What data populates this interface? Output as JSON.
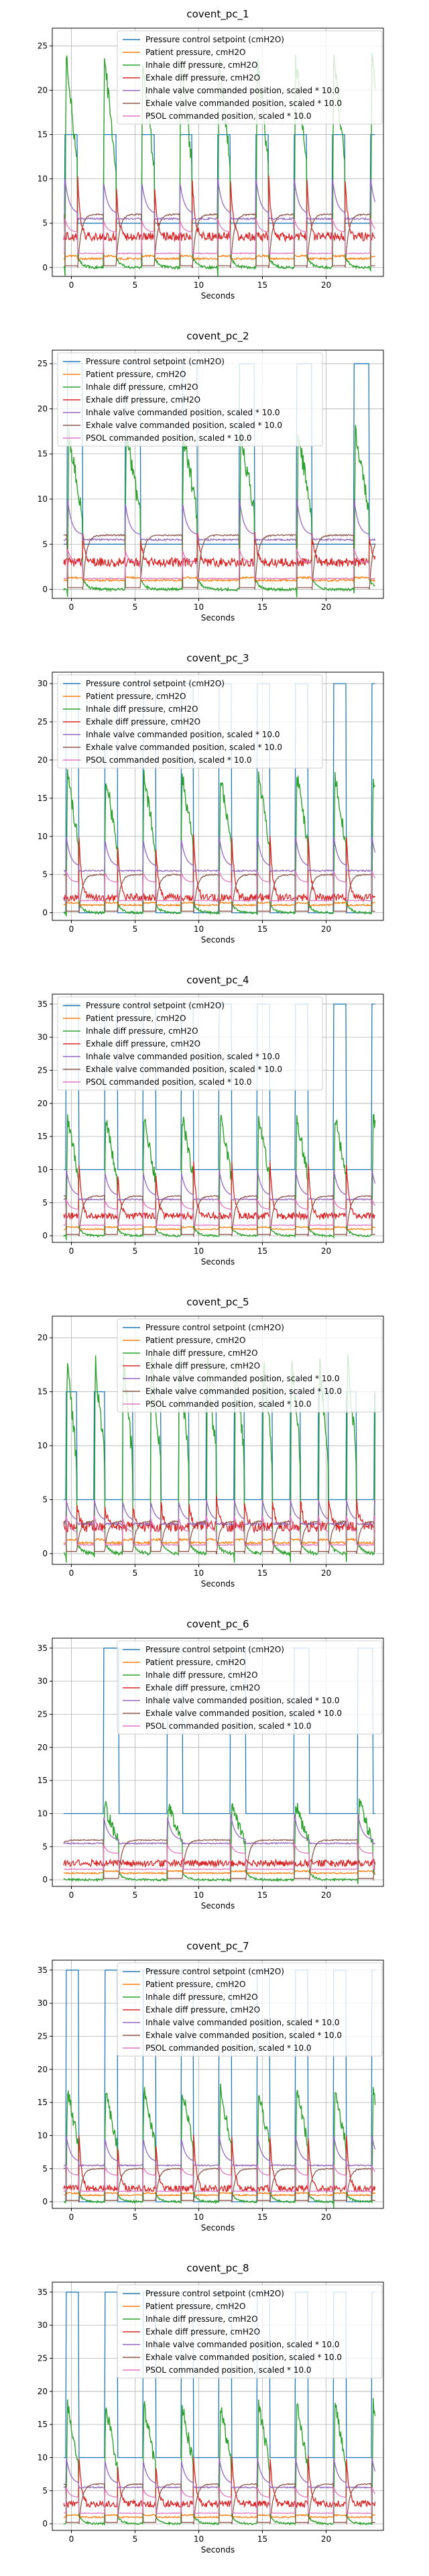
{
  "chart_data": [
    {
      "type": "line",
      "title": "covent_pc_1",
      "xlabel": "Seconds",
      "ylabel": "",
      "xlim": [
        -1.5,
        24.5
      ],
      "ylim": [
        -1,
        27
      ],
      "xticks": [
        "0",
        "5",
        "10",
        "15",
        "20"
      ],
      "yticks": [
        "0",
        "5",
        "10",
        "15",
        "20",
        "25"
      ],
      "params": {
        "setpoint_high": 15,
        "setpoint_low": 5,
        "insp_peak": 25,
        "exh_peak": 10,
        "inh_valve_high": 10,
        "exh_valve_level": 6,
        "psol_level": 4,
        "patient_level": 1,
        "peep": 3.5,
        "period": 3.0,
        "insp_duration": 1.0,
        "start": -0.5
      },
      "legend": [
        "Pressure control setpoint (cmH2O)",
        "Patient pressure, cmH2O",
        "Inhale diff pressure, cmH2O",
        "Exhale diff pressure, cmH2O",
        "Inhale valve commanded position, scaled * 10.0",
        "Exhale valve commanded position, scaled * 10.0",
        "PSOL commanded position, scaled * 10.0"
      ]
    },
    {
      "type": "line",
      "title": "covent_pc_2",
      "xlabel": "Seconds",
      "ylabel": "",
      "xlim": [
        -1.5,
        24.5
      ],
      "ylim": [
        -1,
        26.5
      ],
      "xticks": [
        "0",
        "5",
        "10",
        "15",
        "20"
      ],
      "yticks": [
        "0",
        "5",
        "10",
        "15",
        "20",
        "25"
      ],
      "params": {
        "setpoint_high": 25,
        "setpoint_low": 5,
        "insp_peak": 18,
        "exh_peak": 6,
        "inh_valve_high": 10,
        "exh_valve_level": 6,
        "psol_level": 3,
        "patient_level": 1,
        "peep": 3,
        "period": 4.5,
        "insp_duration": 1.2,
        "start": -0.3
      },
      "legend": [
        "Pressure control setpoint (cmH2O)",
        "Patient pressure, cmH2O",
        "Inhale diff pressure, cmH2O",
        "Exhale diff pressure, cmH2O",
        "Inhale valve commanded position, scaled * 10.0",
        "Exhale valve commanded position, scaled * 10.0",
        "PSOL commanded position, scaled * 10.0"
      ]
    },
    {
      "type": "line",
      "title": "covent_pc_3",
      "xlabel": "Seconds",
      "ylabel": "",
      "xlim": [
        -1.5,
        24.5
      ],
      "ylim": [
        -1,
        31.5
      ],
      "xticks": [
        "0",
        "5",
        "10",
        "15",
        "20"
      ],
      "yticks": [
        "0",
        "5",
        "10",
        "15",
        "20",
        "25",
        "30"
      ],
      "params": {
        "setpoint_high": 30,
        "setpoint_low": 0,
        "insp_peak": 19,
        "exh_peak": 10,
        "inh_valve_high": 10,
        "exh_valve_level": 5,
        "psol_level": 4,
        "patient_level": 1,
        "peep": 2,
        "period": 3.0,
        "insp_duration": 1.0,
        "start": -0.4
      },
      "legend": [
        "Pressure control setpoint (cmH2O)",
        "Patient pressure, cmH2O",
        "Inhale diff pressure, cmH2O",
        "Exhale diff pressure, cmH2O",
        "Inhale valve commanded position, scaled * 10.0",
        "Exhale valve commanded position, scaled * 10.0",
        "PSOL commanded position, scaled * 10.0"
      ]
    },
    {
      "type": "line",
      "title": "covent_pc_4",
      "xlabel": "Seconds",
      "ylabel": "",
      "xlim": [
        -1.5,
        24.5
      ],
      "ylim": [
        -1,
        36.5
      ],
      "xticks": [
        "0",
        "5",
        "10",
        "15",
        "20"
      ],
      "yticks": [
        "0",
        "5",
        "10",
        "15",
        "20",
        "25",
        "30",
        "35"
      ],
      "params": {
        "setpoint_high": 35,
        "setpoint_low": 10,
        "insp_peak": 19,
        "exh_peak": 11,
        "inh_valve_high": 10,
        "exh_valve_level": 6,
        "psol_level": 4,
        "patient_level": 1,
        "peep": 3,
        "period": 3.0,
        "insp_duration": 1.0,
        "start": -0.4
      },
      "legend": [
        "Pressure control setpoint (cmH2O)",
        "Patient pressure, cmH2O",
        "Inhale diff pressure, cmH2O",
        "Exhale diff pressure, cmH2O",
        "Inhale valve commanded position, scaled * 10.0",
        "Exhale valve commanded position, scaled * 10.0",
        "PSOL commanded position, scaled * 10.0"
      ]
    },
    {
      "type": "line",
      "title": "covent_pc_5",
      "xlabel": "Seconds",
      "ylabel": "",
      "xlim": [
        -1.5,
        24.5
      ],
      "ylim": [
        -1,
        22
      ],
      "xticks": [
        "0",
        "5",
        "10",
        "15",
        "20"
      ],
      "yticks": [
        "0",
        "5",
        "10",
        "15",
        "20"
      ],
      "params": {
        "setpoint_high": 15,
        "setpoint_low": 5,
        "insp_peak": 19,
        "exh_peak": 5,
        "inh_valve_high": 5,
        "exh_valve_level": 3,
        "psol_level": 2,
        "patient_level": 1,
        "peep": 2.5,
        "period": 2.2,
        "insp_duration": 0.8,
        "start": -0.4
      },
      "legend": [
        "Pressure control setpoint (cmH2O)",
        "Patient pressure, cmH2O",
        "Inhale diff pressure, cmH2O",
        "Exhale diff pressure, cmH2O",
        "Inhale valve commanded position, scaled * 10.0",
        "Exhale valve commanded position, scaled * 10.0",
        "PSOL commanded position, scaled * 10.0"
      ]
    },
    {
      "type": "line",
      "title": "covent_pc_6",
      "xlabel": "Seconds",
      "ylabel": "",
      "xlim": [
        -1.5,
        24.5
      ],
      "ylim": [
        -1,
        36.5
      ],
      "xticks": [
        "0",
        "5",
        "10",
        "15",
        "20"
      ],
      "yticks": [
        "0",
        "5",
        "10",
        "15",
        "20",
        "25",
        "30",
        "35"
      ],
      "params": {
        "setpoint_high": 35,
        "setpoint_low": 10,
        "insp_peak": 12,
        "exh_peak": 3,
        "inh_valve_high": 10,
        "exh_valve_level": 6,
        "psol_level": 4,
        "patient_level": 1,
        "peep": 2.5,
        "period": 5.0,
        "insp_duration": 1.2,
        "start": 2.5
      },
      "legend": [
        "Pressure control setpoint (cmH2O)",
        "Patient pressure, cmH2O",
        "Inhale diff pressure, cmH2O",
        "Exhale diff pressure, cmH2O",
        "Inhale valve commanded position, scaled * 10.0",
        "Exhale valve commanded position, scaled * 10.0",
        "PSOL commanded position, scaled * 10.0"
      ]
    },
    {
      "type": "line",
      "title": "covent_pc_7",
      "xlabel": "Seconds",
      "ylabel": "",
      "xlim": [
        -1.5,
        24.5
      ],
      "ylim": [
        -1,
        36.5
      ],
      "xticks": [
        "0",
        "5",
        "10",
        "15",
        "20"
      ],
      "yticks": [
        "0",
        "5",
        "10",
        "15",
        "20",
        "25",
        "30",
        "35"
      ],
      "params": {
        "setpoint_high": 35,
        "setpoint_low": 0,
        "insp_peak": 18,
        "exh_peak": 10,
        "inh_valve_high": 10,
        "exh_valve_level": 5,
        "psol_level": 4,
        "patient_level": 1,
        "peep": 2,
        "period": 3.0,
        "insp_duration": 1.0,
        "start": -0.4
      },
      "legend": [
        "Pressure control setpoint (cmH2O)",
        "Patient pressure, cmH2O",
        "Inhale diff pressure, cmH2O",
        "Exhale diff pressure, cmH2O",
        "Inhale valve commanded position, scaled * 10.0",
        "Exhale valve commanded position, scaled * 10.0",
        "PSOL commanded position, scaled * 10.0"
      ]
    },
    {
      "type": "line",
      "title": "covent_pc_8",
      "xlabel": "Seconds",
      "ylabel": "",
      "xlim": [
        -1.5,
        24.5
      ],
      "ylim": [
        -1,
        36.5
      ],
      "xticks": [
        "0",
        "5",
        "10",
        "15",
        "20"
      ],
      "yticks": [
        "0",
        "5",
        "10",
        "15",
        "20",
        "25",
        "30",
        "35"
      ],
      "params": {
        "setpoint_high": 35,
        "setpoint_low": 10,
        "insp_peak": 19,
        "exh_peak": 10,
        "inh_valve_high": 10,
        "exh_valve_level": 6,
        "psol_level": 4,
        "patient_level": 1,
        "peep": 3,
        "period": 3.0,
        "insp_duration": 1.0,
        "start": -0.4
      },
      "legend": [
        "Pressure control setpoint (cmH2O)",
        "Patient pressure, cmH2O",
        "Inhale diff pressure, cmH2O",
        "Exhale diff pressure, cmH2O",
        "Inhale valve commanded position, scaled * 10.0",
        "Exhale valve commanded position, scaled * 10.0",
        "PSOL commanded position, scaled * 10.0"
      ]
    }
  ],
  "colors": [
    "#1f77b4",
    "#ff7f0e",
    "#2ca02c",
    "#d62728",
    "#9467bd",
    "#8c564b",
    "#e377c2"
  ]
}
